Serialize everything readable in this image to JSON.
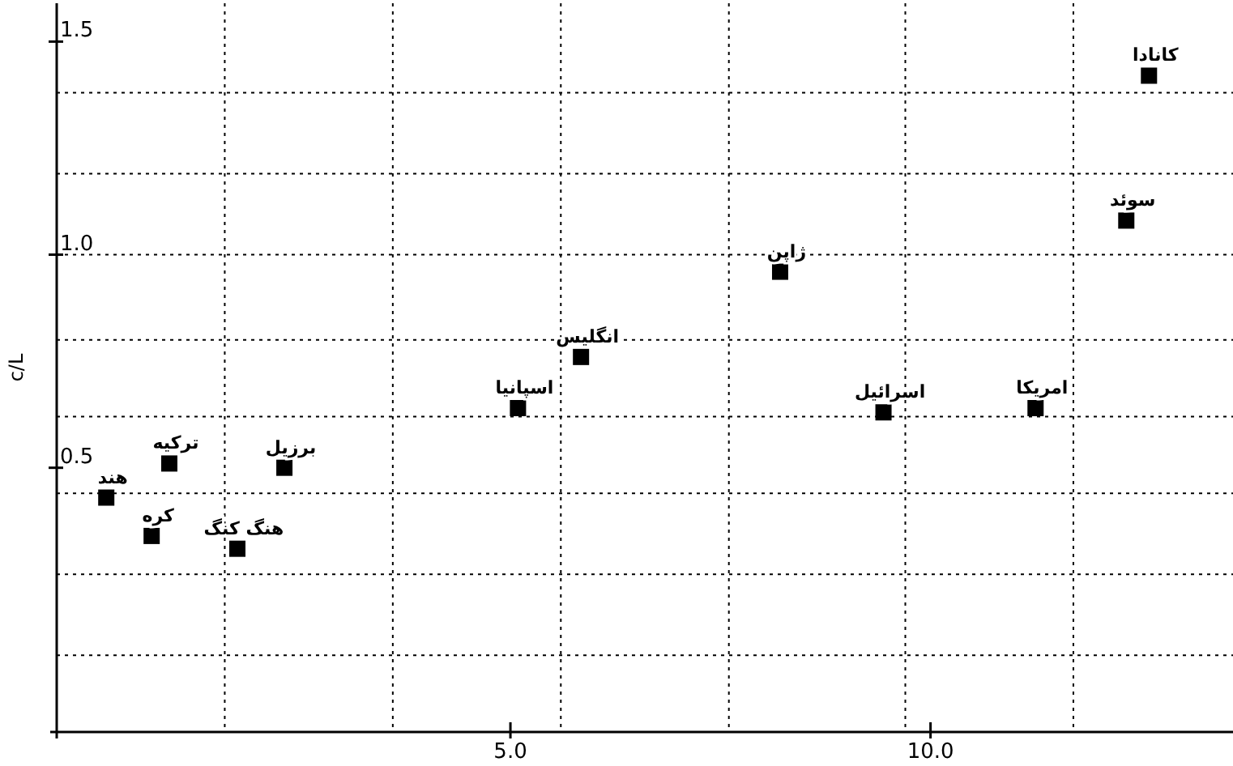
{
  "chart_data": {
    "type": "scatter",
    "ylabel": "c/L",
    "marker": "square",
    "grid": true,
    "xlim": [
      -0.4,
      13.6
    ],
    "ylim": [
      -0.12,
      1.59
    ],
    "xticks": [
      {
        "value": 1.6,
        "label": null
      },
      {
        "value": 3.6,
        "label": null
      },
      {
        "value": 5.0,
        "label": "5.0"
      },
      {
        "value": 5.6,
        "label": null
      },
      {
        "value": 7.6,
        "label": null
      },
      {
        "value": 9.7,
        "label": null
      },
      {
        "value": 10.0,
        "label": "10.0"
      },
      {
        "value": 11.7,
        "label": null
      }
    ],
    "yticks": [
      {
        "value": 0.06,
        "label": null
      },
      {
        "value": 0.25,
        "label": null
      },
      {
        "value": 0.44,
        "label": null
      },
      {
        "value": 0.5,
        "label": "0.5"
      },
      {
        "value": 0.62,
        "label": null
      },
      {
        "value": 0.8,
        "label": null
      },
      {
        "value": 1.0,
        "label": "1.0"
      },
      {
        "value": 1.19,
        "label": null
      },
      {
        "value": 1.38,
        "label": null
      },
      {
        "value": 1.5,
        "label": "1.5"
      }
    ],
    "series": [
      {
        "color": "#000000",
        "x": [
          0.19,
          0.94,
          0.73,
          1.75,
          2.31,
          5.09,
          5.84,
          8.21,
          9.44,
          11.25,
          12.33,
          12.6
        ],
        "values": [
          0.43,
          0.51,
          0.34,
          0.31,
          0.5,
          0.64,
          0.76,
          0.96,
          0.63,
          0.64,
          1.08,
          1.42
        ],
        "value_labels": [
          "هند",
          "ترکیه",
          "کره",
          "هنگ کنگ",
          "برزیل",
          "اسپانیا",
          "انگلیس",
          "ژاپن",
          "اسرائیل",
          "امریکا",
          "سوئد",
          "کانادا"
        ]
      }
    ]
  }
}
